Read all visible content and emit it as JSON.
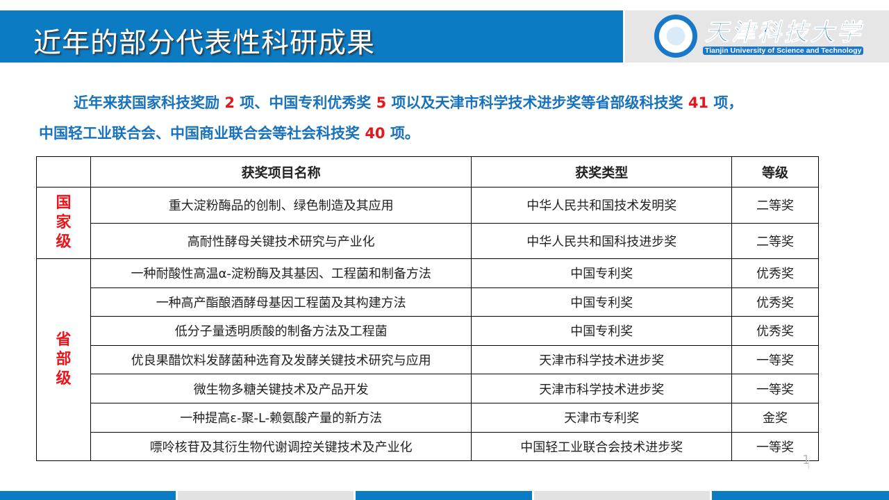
{
  "header": {
    "title": "近年的部分代表性科研成果",
    "logo_cn": "天津科技大学",
    "logo_en": "Tianjin University of Science and Technology"
  },
  "summary": {
    "p1": "近年来获国家科技奖励 ",
    "n1": "2",
    "p2": " 项、中国专利优秀奖 ",
    "n2": "5",
    "p3": " 项以及天津市科学技术进步奖等省部级科技奖 ",
    "n3": "41",
    "p4": " 项，",
    "p5": "中国轻工业联合会、中国商业联合会等社会科技奖 ",
    "n4": "40",
    "p6": " 项。"
  },
  "table": {
    "headers": [
      "",
      "获奖项目名称",
      "获奖类型",
      "等级"
    ],
    "groups": [
      {
        "label": "国家级",
        "rows": [
          [
            "重大淀粉酶品的创制、绿色制造及其应用",
            "中华人民共和国技术发明奖",
            "二等奖"
          ],
          [
            "高耐性酵母关键技术研究与产业化",
            "中华人民共和国科技进步奖",
            "二等奖"
          ]
        ]
      },
      {
        "label": "省部级",
        "rows": [
          [
            "一种耐酸性高温α-淀粉酶及其基因、工程菌和制备方法",
            "中国专利奖",
            "优秀奖"
          ],
          [
            "一种高产酯酿酒酵母基因工程菌及其构建方法",
            "中国专利奖",
            "优秀奖"
          ],
          [
            "低分子量透明质酸的制备方法及工程菌",
            "中国专利奖",
            "优秀奖"
          ],
          [
            "优良果醋饮料发酵菌种选育及发酵关键技术研究与应用",
            "天津市科学技术进步奖",
            "一等奖"
          ],
          [
            "微生物多糖关键技术及产品开发",
            "天津市科学技术进步奖",
            "一等奖"
          ],
          [
            "一种提高ε-聚-L-赖氨酸产量的新方法",
            "天津市专利奖",
            "金奖"
          ],
          [
            "嘌呤核苷及其衍生物代谢调控关键技术及产业化",
            "中国轻工业联合会技术进步奖",
            "一等奖"
          ]
        ]
      }
    ]
  },
  "page_number": "1",
  "colors": {
    "brand_blue": "#0b7bc3",
    "accent_red": "#e8161b",
    "text_blue": "#1771bc"
  }
}
